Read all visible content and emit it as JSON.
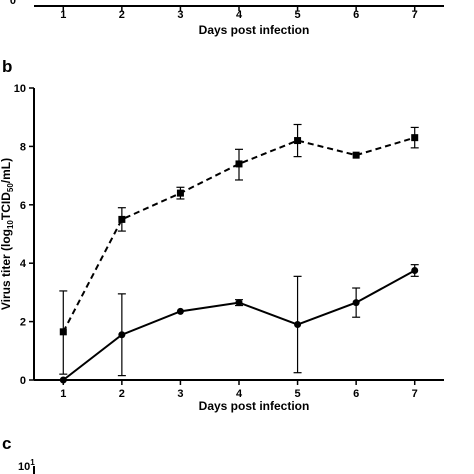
{
  "figure": {
    "top_panel": {
      "xlabel": "Days post infection",
      "x_ticks": [
        "1",
        "2",
        "3",
        "4",
        "5",
        "6",
        "7"
      ],
      "y_tick_visible": "0"
    },
    "panel_b_label": "b",
    "panel_c_label": "c",
    "panel_c_tick": "10",
    "panel_c_tick_exp": "1"
  },
  "chart_data": [
    {
      "type": "line",
      "panel": "b",
      "xlabel": "Days post infection",
      "ylabel_parts": [
        "Virus titer (log",
        "10",
        "TCID",
        "50",
        "/mL)"
      ],
      "x": [
        1,
        2,
        3,
        4,
        5,
        6,
        7
      ],
      "x_ticks": [
        "1",
        "2",
        "3",
        "4",
        "5",
        "6",
        "7"
      ],
      "y_ticks": [
        "0",
        "2",
        "4",
        "6",
        "8",
        "10"
      ],
      "xlim": [
        0.5,
        7.5
      ],
      "ylim": [
        0,
        10
      ],
      "grid": false,
      "series": [
        {
          "style": "dashed",
          "marker": "square",
          "color": "#000000",
          "values": [
            1.65,
            5.5,
            6.4,
            7.4,
            8.2,
            7.7,
            8.3
          ],
          "err_low": [
            1.45,
            0.4,
            0.2,
            0.55,
            0.55,
            0.0,
            0.35
          ],
          "err_high": [
            1.4,
            0.4,
            0.2,
            0.5,
            0.55,
            0.0,
            0.35
          ]
        },
        {
          "style": "solid",
          "marker": "circle",
          "color": "#000000",
          "values": [
            0.0,
            1.55,
            2.35,
            2.65,
            1.9,
            2.65,
            3.75
          ],
          "err_low": [
            0.0,
            1.4,
            0.0,
            0.1,
            1.65,
            0.5,
            0.2
          ],
          "err_high": [
            0.0,
            1.4,
            0.0,
            0.1,
            1.65,
            0.5,
            0.2
          ]
        }
      ]
    }
  ]
}
